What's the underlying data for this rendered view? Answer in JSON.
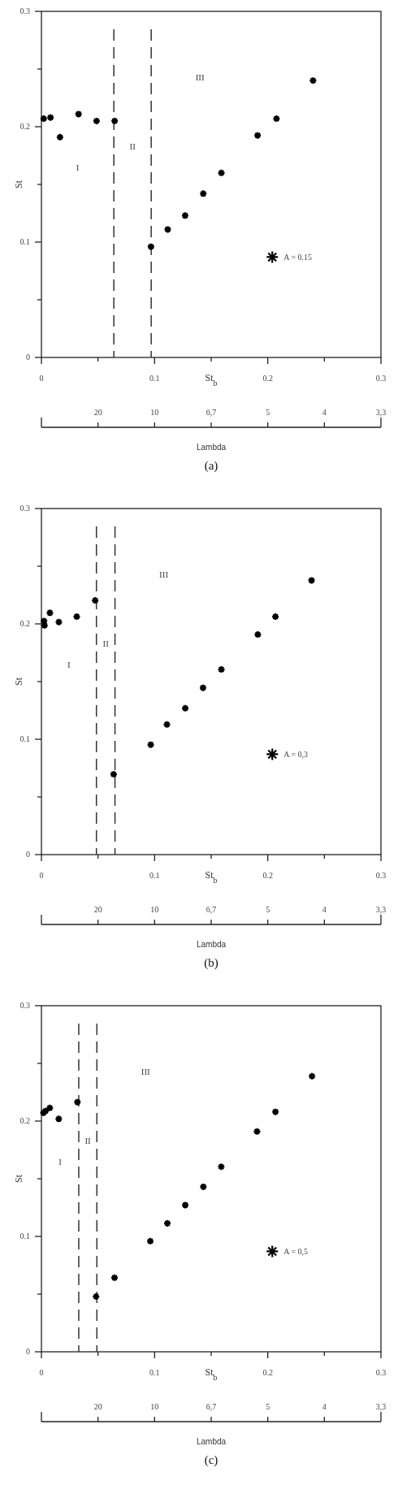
{
  "chart_data": [
    {
      "type": "scatter",
      "xlabel": "St$_{b}$",
      "ylabel": "St",
      "marker": "cross",
      "legend": "right",
      "series": [
        {
          "name": "A = 0.15",
          "color": "#000000",
          "x": [
            0.002,
            0.008,
            0.0164,
            0.0328,
            0.0487,
            0.0647,
            0.0968,
            0.1116,
            0.127,
            0.143,
            0.159,
            0.191,
            0.2077,
            0.24
          ],
          "values": [
            0.207,
            0.208,
            0.191,
            0.211,
            0.205,
            0.205,
            0.096,
            0.111,
            0.123,
            0.142,
            0.16,
            0.1925,
            0.207,
            0.24
          ]
        }
      ],
      "xlim": [
        0,
        0.3
      ],
      "xticks": [
        0,
        {
          "value": 0.05,
          "label": null
        },
        0.1,
        {
          "value": 0.15,
          "label": null
        },
        0.2,
        {
          "value": 0.25,
          "label": null
        },
        0.3
      ],
      "ylim": [
        0,
        0.3
      ],
      "yticks": [
        0,
        {
          "value": 0.05,
          "label": null
        },
        0.1,
        {
          "value": 0.15,
          "label": null
        },
        0.2,
        {
          "value": 0.25,
          "label": null
        },
        0.3
      ],
      "ref_lines": [
        {
          "axis": "x",
          "value": 0.064,
          "line_style": "dashed"
        },
        {
          "axis": "x",
          "value": 0.097,
          "line_style": "dashed"
        }
      ],
      "annotations": [
        "I",
        "II",
        "III"
      ]
    },
    {
      "type": "other",
      "title": "(a)",
      "xlabel": "Lambda",
      "categories": [
        null,
        "20",
        "10",
        "6,7",
        "5",
        "4",
        "3,3"
      ]
    },
    {
      "type": "scatter",
      "xlabel": "St$_{b}$",
      "ylabel": "St",
      "marker": "cross",
      "legend": "right",
      "series": [
        {
          "name": "A = 0,3",
          "color": "#000000",
          "x": [
            0.0023,
            0.0027,
            0.0075,
            0.0154,
            0.0312,
            0.0475,
            0.0638,
            0.0966,
            0.1109,
            0.1271,
            0.1428,
            0.159,
            0.1912,
            0.2068,
            0.2387
          ],
          "values": [
            0.2025,
            0.1987,
            0.2096,
            0.2016,
            0.2063,
            0.2204,
            0.0697,
            0.0953,
            0.1128,
            0.1269,
            0.1446,
            0.1605,
            0.1908,
            0.2063,
            0.2377
          ]
        }
      ],
      "xlim": [
        0,
        0.3
      ],
      "xticks": [
        0,
        {
          "value": 0.05,
          "label": null
        },
        0.1,
        {
          "value": 0.15,
          "label": null
        },
        0.2,
        {
          "value": 0.25,
          "label": null
        },
        0.3
      ],
      "ylim": [
        0,
        0.3
      ],
      "yticks": [
        0,
        {
          "value": 0.05,
          "label": null
        },
        0.1,
        {
          "value": 0.15,
          "label": null
        },
        0.2,
        {
          "value": 0.25,
          "label": null
        },
        0.3
      ],
      "ref_lines": [
        {
          "axis": "x",
          "value": 0.0486,
          "line_style": "dashed"
        },
        {
          "axis": "x",
          "value": 0.065,
          "line_style": "dashed"
        }
      ],
      "annotations": [
        "I",
        "II",
        "III"
      ]
    },
    {
      "type": "other",
      "title": "(b)",
      "xlabel": "Lambda",
      "categories": [
        null,
        "20",
        "10",
        "6,7",
        "5",
        "4",
        "3,3"
      ]
    },
    {
      "type": "scatter",
      "xlabel": "St$_{b}$",
      "ylabel": "St",
      "marker": "cross",
      "legend": "right",
      "series": [
        {
          "name": "A = 0,5",
          "color": "#000000",
          "x": [
            0.0018,
            0.0036,
            0.0074,
            0.0153,
            0.0318,
            0.0483,
            0.0646,
            0.0962,
            0.1113,
            0.1271,
            0.1431,
            0.1589,
            0.1905,
            0.2068,
            0.2391
          ],
          "values": [
            0.2071,
            0.2087,
            0.2114,
            0.2019,
            0.2164,
            0.0479,
            0.0642,
            0.0959,
            0.1113,
            0.1272,
            0.143,
            0.1604,
            0.191,
            0.208,
            0.2389
          ]
        }
      ],
      "xlim": [
        0,
        0.3
      ],
      "xticks": [
        0,
        {
          "value": 0.05,
          "label": null
        },
        0.1,
        {
          "value": 0.15,
          "label": null
        },
        0.2,
        {
          "value": 0.25,
          "label": null
        },
        0.3
      ],
      "ylim": [
        0,
        0.3
      ],
      "yticks": [
        0,
        {
          "value": 0.05,
          "label": null
        },
        0.1,
        {
          "value": 0.15,
          "label": null
        },
        0.2,
        {
          "value": 0.25,
          "label": null
        },
        0.3
      ],
      "ref_lines": [
        {
          "axis": "x",
          "value": 0.033,
          "line_style": "dashed"
        },
        {
          "axis": "x",
          "value": 0.049,
          "line_style": "dashed"
        }
      ],
      "annotations": [
        "I",
        "II",
        "III"
      ]
    },
    {
      "type": "other",
      "title": "(c)",
      "xlabel": "Lambda",
      "categories": [
        null,
        "20",
        "10",
        "6,7",
        "5",
        "4",
        "3,3"
      ]
    }
  ]
}
